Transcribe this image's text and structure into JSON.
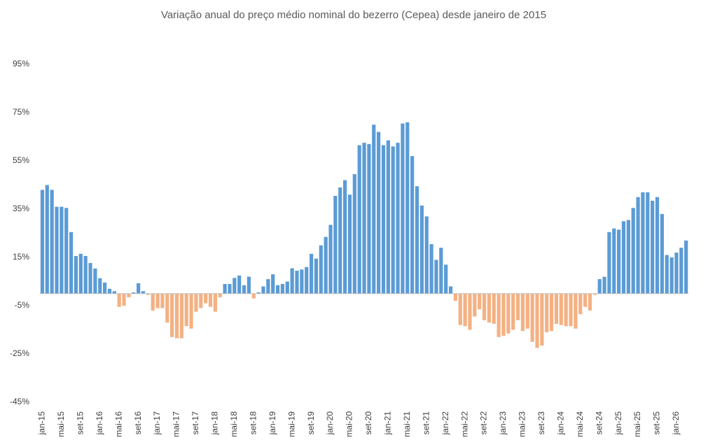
{
  "chart_data": {
    "type": "bar",
    "title": "Variação anual do preço médio nominal do bezerro (Cepea) desde janeiro de 2015",
    "categories": [
      "jan-15",
      null,
      null,
      null,
      "mai-15",
      null,
      null,
      null,
      "set-15",
      null,
      null,
      null,
      "jan-16",
      null,
      null,
      null,
      "mai-16",
      null,
      null,
      null,
      "set-16",
      null,
      null,
      null,
      "jan-17",
      null,
      null,
      null,
      "mai-17",
      null,
      null,
      null,
      "set-17",
      null,
      null,
      null,
      "jan-18",
      null,
      null,
      null,
      "mai-18",
      null,
      null,
      null,
      "set-18",
      null,
      null,
      null,
      "jan-19",
      null,
      null,
      null,
      "mai-19",
      null,
      null,
      null,
      "set-19",
      null,
      null,
      null,
      "jan-20",
      null,
      null,
      null,
      "mai-20",
      null,
      null,
      null,
      "set-20",
      null,
      null,
      null,
      "jan-21",
      null,
      null,
      null,
      "mai-21",
      null,
      null,
      null,
      "set-21",
      null,
      null,
      null,
      "jan-22",
      null,
      null,
      null,
      "mai-22",
      null,
      null,
      null,
      "set-22",
      null,
      null,
      null,
      "jan-23",
      null,
      null,
      null,
      "mai-23",
      null,
      null,
      null,
      "set-23",
      null,
      null,
      null,
      "jan-24",
      null,
      null,
      null,
      "mai-24",
      null,
      null,
      null,
      "set-24",
      null,
      null,
      null,
      "jan-25",
      null,
      null,
      null,
      "mai-25",
      null,
      null,
      null,
      "set-25",
      null,
      null,
      null,
      "jan-26",
      null,
      null
    ],
    "values": [
      43,
      45,
      43,
      36,
      36,
      35.5,
      25.5,
      15.6,
      16.5,
      15.6,
      12.7,
      10.4,
      6.4,
      4.6,
      2,
      1,
      -5.5,
      -5,
      -1.5,
      0.5,
      4.3,
      1,
      -0.5,
      -7,
      -6,
      -6,
      -12,
      -18,
      -18.5,
      -18.5,
      -13.5,
      -14.5,
      -7.5,
      -6,
      -4,
      -5.5,
      -7.5,
      -1.5,
      4,
      4,
      6.5,
      7.5,
      3.5,
      7,
      -2,
      0.5,
      3,
      6,
      8,
      3.5,
      4,
      5,
      10.5,
      9.5,
      10,
      11,
      16.5,
      14.5,
      20,
      23.5,
      28.5,
      40.5,
      44,
      47,
      41,
      49.5,
      61.5,
      62.5,
      62,
      70,
      67,
      61.5,
      63.5,
      61,
      62.5,
      70.5,
      71,
      57,
      44.5,
      36.5,
      32,
      20.5,
      14,
      19,
      12,
      3,
      -3,
      -13,
      -13.5,
      -15,
      -9.5,
      -6.5,
      -11,
      -12,
      -12.5,
      -18,
      -17.5,
      -16.5,
      -15,
      -11,
      -15.5,
      -14.5,
      -20,
      -22.5,
      -21.5,
      -16,
      -15.5,
      -12.5,
      -13,
      -13.5,
      -13.5,
      -14.5,
      -8.5,
      -5.5,
      -7,
      -0.5,
      6,
      7,
      25.5,
      27,
      26.5,
      30,
      30.5,
      35.5,
      40,
      42,
      42,
      38.5,
      40,
      33,
      16,
      15,
      17,
      19,
      22
    ],
    "positive_color": "#5b9bd5",
    "negative_color": "#f4b183",
    "ylim": [
      -45,
      95
    ],
    "yticks": [
      {
        "value": -45,
        "label": "-45%"
      },
      {
        "value": -25,
        "label": "-25%"
      },
      {
        "value": -5,
        "label": "-5%"
      },
      {
        "value": 15,
        "label": "15%"
      },
      {
        "value": 35,
        "label": "35%"
      },
      {
        "value": 55,
        "label": "55%"
      },
      {
        "value": 75,
        "label": "75%"
      },
      {
        "value": 95,
        "label": "95%"
      }
    ],
    "grid": false
  }
}
